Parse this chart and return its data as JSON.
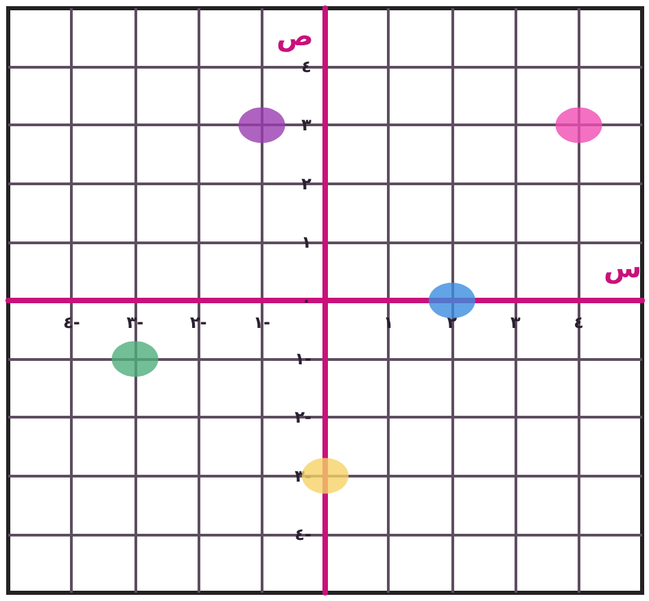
{
  "chart_data": {
    "type": "scatter",
    "xlabel": "س",
    "ylabel": "ص",
    "xlim": [
      -5,
      5
    ],
    "ylim": [
      -5,
      5
    ],
    "xticks": [
      {
        "value": -4,
        "label": "٤-"
      },
      {
        "value": -3,
        "label": "٣-"
      },
      {
        "value": -2,
        "label": "٢-"
      },
      {
        "value": -1,
        "label": "١-"
      },
      {
        "value": 0,
        "label": null
      },
      {
        "value": 1,
        "label": "١"
      },
      {
        "value": 2,
        "label": "٢"
      },
      {
        "value": 3,
        "label": "٣"
      },
      {
        "value": 4,
        "label": "٤"
      }
    ],
    "yticks": [
      {
        "value": -4,
        "label": "٤-"
      },
      {
        "value": -3,
        "label": "٣-"
      },
      {
        "value": -2,
        "label": "٢-"
      },
      {
        "value": -1,
        "label": "١-"
      },
      {
        "value": 0,
        "label": "٠"
      },
      {
        "value": 1,
        "label": "١"
      },
      {
        "value": 2,
        "label": "٢"
      },
      {
        "value": 3,
        "label": "٣"
      },
      {
        "value": 4,
        "label": "٤"
      }
    ],
    "x": [
      -1,
      4,
      2,
      -3,
      0
    ],
    "values": [
      3,
      3,
      0,
      -1,
      -3
    ],
    "colors": [
      "#9a3cb0",
      "#f04cb4",
      "#3b8de0",
      "#4fae7c",
      "#f6d266"
    ],
    "marker": "circle",
    "grid": true
  }
}
